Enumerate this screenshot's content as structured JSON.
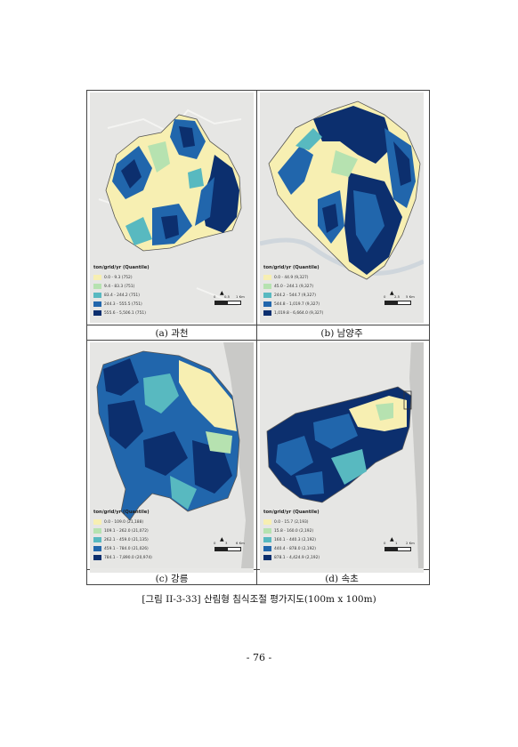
{
  "panels": [
    {
      "id": "gwacheon",
      "caption": "(a) 과천",
      "legend_title": "ton/grid/yr (Quantile)",
      "legend": [
        "0.0 - 9.3 (752)",
        "9.4 - 83.3 (751)",
        "83.4 - 244.2 (751)",
        "244.3 - 555.5 (751)",
        "555.6 - 5,506.1 (751)"
      ],
      "scale_labels": [
        "0",
        "0.5",
        "1 Km"
      ]
    },
    {
      "id": "namyangju",
      "caption": "(b) 남양주",
      "legend_title": "ton/grid/yr (Quantile)",
      "legend": [
        "0.0 - 44.9 (9,327)",
        "45.0 - 244.1 (9,327)",
        "244.2 - 544.7 (9,327)",
        "544.8 - 1,019.7 (9,327)",
        "1,019.8 - 6,664.0 (9,327)"
      ],
      "scale_labels": [
        "0",
        "2.5",
        "5 Km"
      ]
    },
    {
      "id": "gangneung",
      "caption": "(c) 강릉",
      "legend_title": "ton/grid/yr (Quantile)",
      "legend": [
        "0.0 - 109.0 (21,188)",
        "109.1 - 262.0 (21,072)",
        "262.1 - 459.0 (21,135)",
        "459.1 - 784.0 (21,026)",
        "784.1 - 7,890.0 (20,974)"
      ],
      "scale_labels": [
        "0",
        "3",
        "6 Km"
      ]
    },
    {
      "id": "sokcho",
      "caption": "(d) 속초",
      "legend_title": "ton/grid/yr (Quantile)",
      "legend": [
        "0.0 - 15.7 (2,193)",
        "15.8 - 160.0 (2,192)",
        "160.1 - 440.3 (2,192)",
        "440.4 - 878.0 (2,192)",
        "878.1 - 4,424.9 (2,192)"
      ],
      "scale_labels": [
        "0",
        "1",
        "2 Km"
      ]
    }
  ],
  "legend_colors": [
    "#f7efb2",
    "#b6e2b0",
    "#58b9c0",
    "#2166ac",
    "#0c2f6e"
  ],
  "figure_caption": "[그림 II-3-33] 산림형 침식조절 평가지도(100m x 100m)",
  "page_number": "- 76 -"
}
